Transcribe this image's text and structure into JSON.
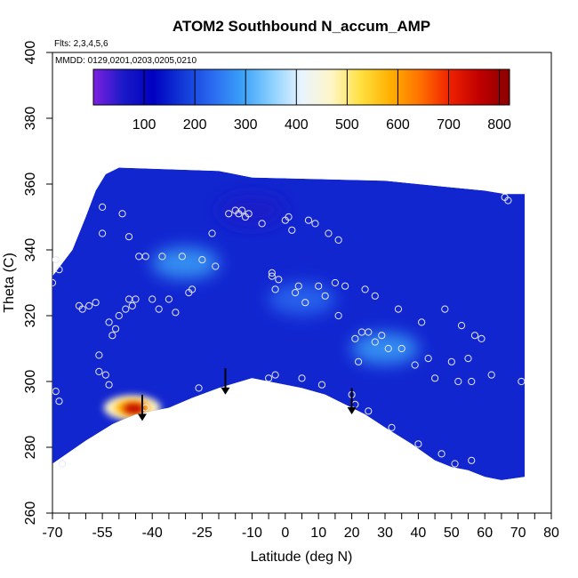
{
  "chart_data": {
    "type": "heatmap",
    "title": "ATOM2 Southbound N_accum_AMP",
    "subtitle_flights": "Flts: 2,3,4,5,6",
    "subtitle_dates": "MMDD: 0129,0201,0203,0205,0210",
    "xlabel": "Latitude (deg N)",
    "ylabel": "Theta (C)",
    "xlim": [
      -70,
      80
    ],
    "ylim": [
      260,
      400
    ],
    "x_ticks": [
      -70,
      -55,
      -40,
      -25,
      -10,
      0,
      10,
      20,
      30,
      40,
      50,
      60,
      70,
      80
    ],
    "x_tick_labels": [
      "-70",
      "-55",
      "-40",
      "-25",
      "-10",
      "0",
      "10",
      "20",
      "30",
      "40",
      "50",
      "60",
      "70",
      "80"
    ],
    "x_minor_ticks": [
      -65,
      -60,
      -50,
      -45,
      -35,
      -30,
      -20,
      -15,
      -5,
      5,
      15,
      25,
      35,
      45,
      55,
      65,
      75
    ],
    "y_ticks": [
      260,
      280,
      300,
      320,
      340,
      360,
      380,
      400
    ],
    "y_tick_labels": [
      "260",
      "280",
      "300",
      "320",
      "340",
      "360",
      "380",
      "400"
    ],
    "colorbar": {
      "range": [
        0,
        820
      ],
      "ticks": [
        100,
        200,
        300,
        400,
        500,
        600,
        700,
        800
      ],
      "tick_labels": [
        "100",
        "200",
        "300",
        "400",
        "500",
        "600",
        "700",
        "800"
      ],
      "colors": [
        "#7e1fe0",
        "#1a1ac8",
        "#0000c0",
        "#1238d8",
        "#2a6af0",
        "#3aa0f8",
        "#8ad0ff",
        "#e8f4ff",
        "#fff6c8",
        "#ffe040",
        "#ffb000",
        "#ff7000",
        "#ee2000",
        "#c00000",
        "#8a0000"
      ]
    },
    "field_background": "#1226d0",
    "arrows": [
      {
        "lat": -43,
        "theta_top": 296,
        "theta_bottom": 288
      },
      {
        "lat": -18,
        "theta_top": 304,
        "theta_bottom": 296
      },
      {
        "lat": 20,
        "theta_top": 298,
        "theta_bottom": 290
      }
    ],
    "anomaly_regions": [
      {
        "name": "high-concentration-core",
        "lat_center": -46,
        "theta_center": 292,
        "level": 750
      },
      {
        "name": "mid-upper-band",
        "lat_center": -30,
        "theta_center": 336,
        "level": 300
      },
      {
        "name": "mid-lat-streak",
        "lat_center": 30,
        "theta_center": 310,
        "level": 320
      },
      {
        "name": "tropics-plume",
        "lat_center": 5,
        "theta_center": 325,
        "level": 220
      },
      {
        "name": "upper-purple-patch",
        "lat_center": -10,
        "theta_center": 352,
        "level": 40
      }
    ],
    "boundary_lower": [
      [
        -70,
        275
      ],
      [
        -60,
        282
      ],
      [
        -52,
        287
      ],
      [
        -45,
        290
      ],
      [
        -35,
        292
      ],
      [
        -28,
        295
      ],
      [
        -20,
        298
      ],
      [
        -10,
        301
      ],
      [
        -5,
        300
      ],
      [
        5,
        298
      ],
      [
        12,
        296
      ],
      [
        18,
        293
      ],
      [
        24,
        290
      ],
      [
        30,
        286
      ],
      [
        38,
        281
      ],
      [
        45,
        276
      ],
      [
        50,
        274
      ],
      [
        55,
        273
      ],
      [
        60,
        271
      ],
      [
        65,
        270
      ],
      [
        72,
        271
      ]
    ],
    "boundary_upper": [
      [
        -70,
        332
      ],
      [
        -64,
        340
      ],
      [
        -60,
        350
      ],
      [
        -57,
        358
      ],
      [
        -54,
        363
      ],
      [
        -50,
        365
      ],
      [
        -20,
        364
      ],
      [
        -10,
        362
      ],
      [
        30,
        361
      ],
      [
        50,
        359
      ],
      [
        60,
        358
      ],
      [
        66,
        357
      ],
      [
        72,
        357
      ]
    ],
    "points": [
      {
        "lat": -70,
        "theta": 330
      },
      {
        "lat": -69,
        "theta": 337
      },
      {
        "lat": -68,
        "theta": 334
      },
      {
        "lat": -69,
        "theta": 297
      },
      {
        "lat": -68,
        "theta": 294
      },
      {
        "lat": -67,
        "theta": 275
      },
      {
        "lat": -62,
        "theta": 323
      },
      {
        "lat": -61,
        "theta": 322
      },
      {
        "lat": -59,
        "theta": 323
      },
      {
        "lat": -57,
        "theta": 324
      },
      {
        "lat": -56,
        "theta": 308
      },
      {
        "lat": -56,
        "theta": 303
      },
      {
        "lat": -55,
        "theta": 353
      },
      {
        "lat": -55,
        "theta": 345
      },
      {
        "lat": -54,
        "theta": 302
      },
      {
        "lat": -53,
        "theta": 299
      },
      {
        "lat": -53,
        "theta": 318
      },
      {
        "lat": -52,
        "theta": 314
      },
      {
        "lat": -51,
        "theta": 316
      },
      {
        "lat": -50,
        "theta": 320
      },
      {
        "lat": -49,
        "theta": 351
      },
      {
        "lat": -48,
        "theta": 322
      },
      {
        "lat": -47,
        "theta": 325
      },
      {
        "lat": -46,
        "theta": 323
      },
      {
        "lat": -47,
        "theta": 344
      },
      {
        "lat": -45,
        "theta": 325
      },
      {
        "lat": -44,
        "theta": 338
      },
      {
        "lat": -42,
        "theta": 338
      },
      {
        "lat": -42,
        "theta": 292
      },
      {
        "lat": -40,
        "theta": 325
      },
      {
        "lat": -38,
        "theta": 322
      },
      {
        "lat": -37,
        "theta": 338
      },
      {
        "lat": -35,
        "theta": 325
      },
      {
        "lat": -33,
        "theta": 321
      },
      {
        "lat": -31,
        "theta": 338
      },
      {
        "lat": -29,
        "theta": 327
      },
      {
        "lat": -28,
        "theta": 328
      },
      {
        "lat": -26,
        "theta": 298
      },
      {
        "lat": -25,
        "theta": 337
      },
      {
        "lat": -22,
        "theta": 345
      },
      {
        "lat": -21,
        "theta": 335
      },
      {
        "lat": -17,
        "theta": 351
      },
      {
        "lat": -15,
        "theta": 352
      },
      {
        "lat": -14,
        "theta": 351
      },
      {
        "lat": -13,
        "theta": 352
      },
      {
        "lat": -12,
        "theta": 350
      },
      {
        "lat": -11,
        "theta": 351
      },
      {
        "lat": -7,
        "theta": 348
      },
      {
        "lat": -4,
        "theta": 332
      },
      {
        "lat": -4,
        "theta": 333
      },
      {
        "lat": -3,
        "theta": 328
      },
      {
        "lat": -2,
        "theta": 331
      },
      {
        "lat": -5,
        "theta": 301
      },
      {
        "lat": -3,
        "theta": 302
      },
      {
        "lat": 0,
        "theta": 349
      },
      {
        "lat": 1,
        "theta": 350
      },
      {
        "lat": 2,
        "theta": 346
      },
      {
        "lat": 3,
        "theta": 327
      },
      {
        "lat": 4,
        "theta": 329
      },
      {
        "lat": 5,
        "theta": 301
      },
      {
        "lat": 6,
        "theta": 324
      },
      {
        "lat": 7,
        "theta": 349
      },
      {
        "lat": 9,
        "theta": 348
      },
      {
        "lat": 10,
        "theta": 329
      },
      {
        "lat": 11,
        "theta": 299
      },
      {
        "lat": 12,
        "theta": 326
      },
      {
        "lat": 13,
        "theta": 345
      },
      {
        "lat": 15,
        "theta": 330
      },
      {
        "lat": 16,
        "theta": 320
      },
      {
        "lat": 16,
        "theta": 343
      },
      {
        "lat": 18,
        "theta": 329
      },
      {
        "lat": 20,
        "theta": 296
      },
      {
        "lat": 21,
        "theta": 293
      },
      {
        "lat": 21,
        "theta": 313
      },
      {
        "lat": 22,
        "theta": 306
      },
      {
        "lat": 23,
        "theta": 315
      },
      {
        "lat": 24,
        "theta": 328
      },
      {
        "lat": 25,
        "theta": 315
      },
      {
        "lat": 25,
        "theta": 291
      },
      {
        "lat": 27,
        "theta": 312
      },
      {
        "lat": 27,
        "theta": 326
      },
      {
        "lat": 29,
        "theta": 314
      },
      {
        "lat": 31,
        "theta": 310
      },
      {
        "lat": 32,
        "theta": 286
      },
      {
        "lat": 34,
        "theta": 322
      },
      {
        "lat": 35,
        "theta": 310
      },
      {
        "lat": 39,
        "theta": 305
      },
      {
        "lat": 40,
        "theta": 281
      },
      {
        "lat": 41,
        "theta": 318
      },
      {
        "lat": 43,
        "theta": 307
      },
      {
        "lat": 45,
        "theta": 301
      },
      {
        "lat": 47,
        "theta": 278
      },
      {
        "lat": 48,
        "theta": 322
      },
      {
        "lat": 50,
        "theta": 306
      },
      {
        "lat": 51,
        "theta": 275
      },
      {
        "lat": 52,
        "theta": 300
      },
      {
        "lat": 53,
        "theta": 317
      },
      {
        "lat": 55,
        "theta": 307
      },
      {
        "lat": 56,
        "theta": 276
      },
      {
        "lat": 56,
        "theta": 300
      },
      {
        "lat": 57,
        "theta": 314
      },
      {
        "lat": 59,
        "theta": 313
      },
      {
        "lat": 62,
        "theta": 302
      },
      {
        "lat": 66,
        "theta": 356
      },
      {
        "lat": 67,
        "theta": 355
      },
      {
        "lat": 71,
        "theta": 300
      }
    ]
  }
}
